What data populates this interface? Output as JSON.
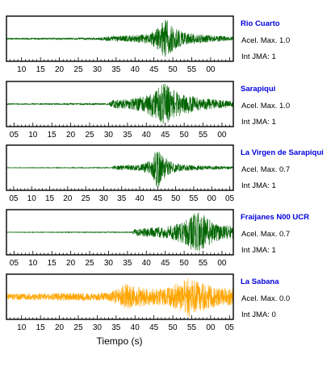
{
  "chart_data": {
    "type": "line",
    "xlabel": "Tiempo (s)",
    "panels": [
      {
        "station": "Rio Cuarto",
        "accel_text": "Acel. Max. 1.0",
        "jma_text": "Int JMA: 1",
        "color": "#006400",
        "tick_labels": [
          "10",
          "15",
          "20",
          "25",
          "30",
          "35",
          "40",
          "45",
          "50",
          "55",
          "00"
        ],
        "xlim": [
          6,
          66
        ],
        "tick_start": 10,
        "signal_onset": 33,
        "envelope": [
          [
            6,
            0.03
          ],
          [
            30,
            0.05
          ],
          [
            33,
            0.12
          ],
          [
            40,
            0.18
          ],
          [
            44,
            0.25
          ],
          [
            46,
            0.55
          ],
          [
            48,
            1.0
          ],
          [
            50,
            0.55
          ],
          [
            53,
            0.3
          ],
          [
            58,
            0.2
          ],
          [
            62,
            0.14
          ],
          [
            66,
            0.1
          ]
        ]
      },
      {
        "station": "Sarapiqui",
        "accel_text": "Acel. Max. 1.0",
        "jma_text": "Int JMA: 1",
        "color": "#006400",
        "tick_labels": [
          "05",
          "10",
          "15",
          "20",
          "25",
          "30",
          "35",
          "40",
          "45",
          "50",
          "55",
          "00"
        ],
        "xlim": [
          3,
          63
        ],
        "tick_start": 5,
        "signal_onset": 31,
        "envelope": [
          [
            3,
            0.02
          ],
          [
            30,
            0.04
          ],
          [
            31,
            0.2
          ],
          [
            36,
            0.25
          ],
          [
            40,
            0.45
          ],
          [
            43,
            0.8
          ],
          [
            45,
            1.0
          ],
          [
            47,
            0.7
          ],
          [
            50,
            0.5
          ],
          [
            54,
            0.3
          ],
          [
            58,
            0.22
          ],
          [
            63,
            0.15
          ]
        ]
      },
      {
        "station": "La Virgen de Sarapiqui",
        "accel_text": "Acel. Max. 0.7",
        "jma_text": "Int JMA: 1",
        "color": "#006400",
        "tick_labels": [
          "05",
          "10",
          "15",
          "20",
          "25",
          "30",
          "35",
          "40",
          "45",
          "50",
          "55",
          "00",
          "05"
        ],
        "xlim": [
          3,
          66
        ],
        "tick_start": 5,
        "signal_onset": 33,
        "envelope": [
          [
            3,
            0.01
          ],
          [
            32,
            0.02
          ],
          [
            33,
            0.1
          ],
          [
            40,
            0.15
          ],
          [
            43,
            0.35
          ],
          [
            45,
            1.0
          ],
          [
            47,
            0.5
          ],
          [
            50,
            0.2
          ],
          [
            55,
            0.12
          ],
          [
            60,
            0.09
          ],
          [
            66,
            0.07
          ]
        ]
      },
      {
        "station": "Fraijanes N00 UCR",
        "accel_text": "Acel. Max. 0.7",
        "jma_text": "Int JMA: 1",
        "color": "#006400",
        "tick_labels": [
          "05",
          "10",
          "15",
          "20",
          "25",
          "30",
          "35",
          "40",
          "45",
          "50",
          "55",
          "00"
        ],
        "xlim": [
          3,
          63
        ],
        "tick_start": 5,
        "signal_onset": 37,
        "envelope": [
          [
            3,
            0.01
          ],
          [
            36,
            0.02
          ],
          [
            37,
            0.15
          ],
          [
            42,
            0.25
          ],
          [
            46,
            0.3
          ],
          [
            50,
            0.55
          ],
          [
            52,
            0.9
          ],
          [
            54,
            1.0
          ],
          [
            56,
            0.7
          ],
          [
            58,
            0.5
          ],
          [
            60,
            0.35
          ],
          [
            63,
            0.3
          ]
        ]
      },
      {
        "station": "La Sabana",
        "accel_text": "Acel. Max. 0.0",
        "jma_text": "Int JMA: 0",
        "color": "#FFA500",
        "tick_labels": [
          "10",
          "15",
          "20",
          "25",
          "30",
          "35",
          "40",
          "45",
          "50",
          "55",
          "00",
          "05"
        ],
        "xlim": [
          6,
          66
        ],
        "tick_start": 10,
        "signal_onset": 33,
        "envelope": [
          [
            6,
            0.15
          ],
          [
            33,
            0.2
          ],
          [
            36,
            0.45
          ],
          [
            38,
            0.65
          ],
          [
            40,
            0.5
          ],
          [
            45,
            0.4
          ],
          [
            49,
            0.45
          ],
          [
            52,
            0.75
          ],
          [
            54,
            1.0
          ],
          [
            56,
            0.8
          ],
          [
            59,
            0.6
          ],
          [
            62,
            0.45
          ],
          [
            66,
            0.4
          ]
        ]
      }
    ]
  }
}
